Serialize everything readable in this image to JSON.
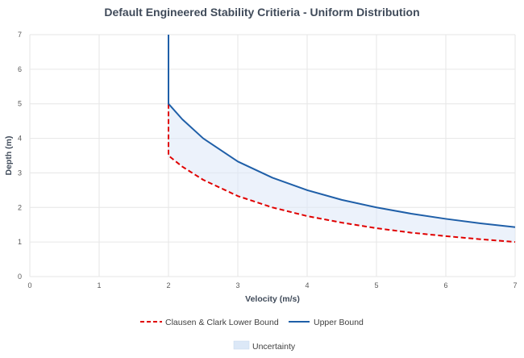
{
  "chart_data": {
    "type": "line",
    "title": "Default Engineered Stability Critieria - Uniform Distribution",
    "xlabel": "Velocity (m/s)",
    "ylabel": "Depth (m)",
    "xlim": [
      0,
      7
    ],
    "ylim": [
      0,
      7
    ],
    "xticks": [
      "0",
      "1",
      "2",
      "3",
      "4",
      "5",
      "6",
      "7"
    ],
    "yticks": [
      "0",
      "1",
      "2",
      "3",
      "4",
      "5",
      "6",
      "7"
    ],
    "grid": true,
    "legend_position": "bottom",
    "series": [
      {
        "name": "Clausen & Clark Lower Bound",
        "style": "dashed",
        "color": "#e00000",
        "x": [
          2.0,
          2.0,
          2.2,
          2.5,
          3.0,
          3.5,
          4.0,
          4.5,
          5.0,
          5.5,
          6.0,
          6.5,
          7.0
        ],
        "y": [
          5.0,
          3.5,
          3.18,
          2.8,
          2.33,
          2.0,
          1.75,
          1.56,
          1.4,
          1.27,
          1.17,
          1.08,
          1.0
        ]
      },
      {
        "name": "Upper Bound",
        "style": "solid",
        "color": "#1f5fa8",
        "x": [
          2.0,
          2.0,
          2.2,
          2.5,
          3.0,
          3.5,
          4.0,
          4.5,
          5.0,
          5.5,
          6.0,
          6.5,
          7.0
        ],
        "y": [
          7.0,
          5.0,
          4.55,
          4.0,
          3.33,
          2.86,
          2.5,
          2.22,
          2.0,
          1.82,
          1.67,
          1.54,
          1.43
        ]
      }
    ],
    "area": {
      "name": "Uncertainty",
      "color": "#dce8f7",
      "between": [
        "Clausen & Clark Lower Bound",
        "Upper Bound"
      ],
      "x_from": 2.0
    }
  }
}
